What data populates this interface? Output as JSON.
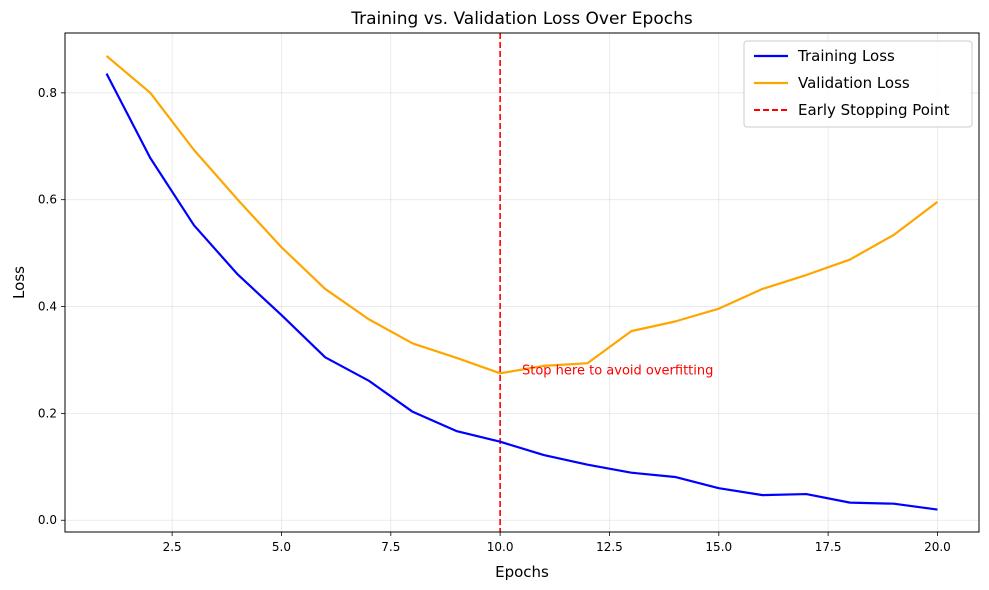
{
  "chart_data": {
    "type": "line",
    "title": "Training vs. Validation Loss Over Epochs",
    "xlabel": "Epochs",
    "ylabel": "Loss",
    "xlim": [
      0.05,
      20.95
    ],
    "ylim": [
      -0.022,
      0.912
    ],
    "xticks": [
      2.5,
      5.0,
      7.5,
      10.0,
      12.5,
      15.0,
      17.5,
      20.0
    ],
    "xtick_labels": [
      "2.5",
      "5.0",
      "7.5",
      "10.0",
      "12.5",
      "15.0",
      "17.5",
      "20.0"
    ],
    "yticks": [
      0.0,
      0.2,
      0.4,
      0.6,
      0.8
    ],
    "ytick_labels": [
      "0.0",
      "0.2",
      "0.4",
      "0.6",
      "0.8"
    ],
    "grid": true,
    "legend_position": "top-right",
    "x": [
      1,
      2,
      3,
      4,
      5,
      6,
      7,
      8,
      9,
      10,
      11,
      12,
      13,
      14,
      15,
      16,
      17,
      18,
      19,
      20
    ],
    "series": [
      {
        "name": "Training Loss",
        "color": "#0000ff",
        "values": [
          0.836,
          0.678,
          0.552,
          0.46,
          0.384,
          0.305,
          0.261,
          0.203,
          0.167,
          0.147,
          0.122,
          0.104,
          0.089,
          0.081,
          0.06,
          0.047,
          0.049,
          0.033,
          0.031,
          0.02
        ]
      },
      {
        "name": "Validation Loss",
        "color": "#ffa500",
        "values": [
          0.869,
          0.8,
          0.693,
          0.6,
          0.511,
          0.433,
          0.376,
          0.331,
          0.304,
          0.275,
          0.289,
          0.294,
          0.354,
          0.372,
          0.396,
          0.433,
          0.459,
          0.488,
          0.534,
          0.596
        ]
      }
    ],
    "vline": {
      "name": "Early Stopping Point",
      "x": 10,
      "color": "#ff0000",
      "style": "dashed"
    },
    "annotation": {
      "text": "Stop here to avoid overfitting",
      "x": 10.5,
      "y": 0.28,
      "color": "#ff0000"
    }
  }
}
